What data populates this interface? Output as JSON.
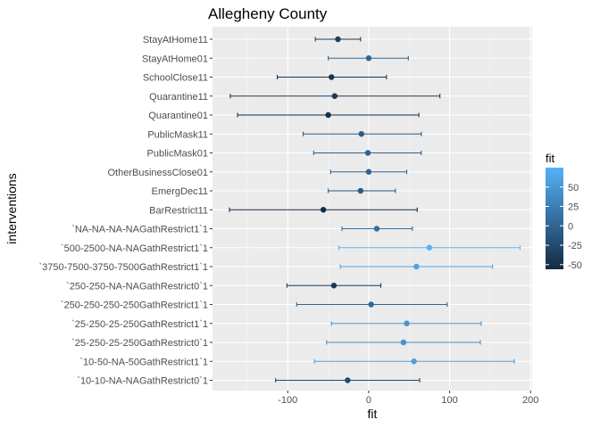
{
  "chart_data": {
    "type": "errorbar",
    "title": "Allegheny County",
    "xlabel": "fit",
    "ylabel": "interventions",
    "xlim": [
      -193,
      202
    ],
    "x_ticks": [
      -100,
      0,
      100,
      200
    ],
    "categories": [
      "StayAtHome11",
      "StayAtHome01",
      "SchoolClose11",
      "Quarantine11",
      "Quarantine01",
      "PublicMask11",
      "PublicMask01",
      "OtherBusinessClose01",
      "EmergDec11",
      "BarRestrict11",
      "`NA-NA-NA-NAGathRestrict1`1",
      "`500-2500-NA-NAGathRestrict1`1",
      "`3750-7500-3750-7500GathRestrict1`1",
      "`250-250-NA-NAGathRestrict0`1",
      "`250-250-250-250GathRestrict1`1",
      "`25-250-25-250GathRestrict1`1",
      "`25-250-25-250GathRestrict0`1",
      "`10-50-NA-50GathRestrict1`1",
      "`10-10-NA-NAGathRestrict0`1"
    ],
    "points": [
      {
        "fit": -38,
        "lower": -66,
        "upper": -10
      },
      {
        "fit": 0,
        "lower": -50,
        "upper": 49
      },
      {
        "fit": -46,
        "lower": -113,
        "upper": 22
      },
      {
        "fit": -42,
        "lower": -171,
        "upper": 88
      },
      {
        "fit": -50,
        "lower": -162,
        "upper": 62
      },
      {
        "fit": -9,
        "lower": -81,
        "upper": 65
      },
      {
        "fit": -1,
        "lower": -68,
        "upper": 65
      },
      {
        "fit": 0,
        "lower": -47,
        "upper": 47
      },
      {
        "fit": -10,
        "lower": -50,
        "upper": 33
      },
      {
        "fit": -56,
        "lower": -172,
        "upper": 60
      },
      {
        "fit": 10,
        "lower": -33,
        "upper": 54
      },
      {
        "fit": 75,
        "lower": -37,
        "upper": 187
      },
      {
        "fit": 59,
        "lower": -35,
        "upper": 153
      },
      {
        "fit": -43,
        "lower": -101,
        "upper": 15
      },
      {
        "fit": 3,
        "lower": -89,
        "upper": 97
      },
      {
        "fit": 47,
        "lower": -46,
        "upper": 139
      },
      {
        "fit": 43,
        "lower": -52,
        "upper": 138
      },
      {
        "fit": 56,
        "lower": -67,
        "upper": 180
      },
      {
        "fit": -26,
        "lower": -115,
        "upper": 63
      }
    ],
    "color_scale": {
      "title": "fit",
      "low_color": "#132B43",
      "high_color": "#56B1F7",
      "domain": [
        -56,
        75
      ],
      "ticks": [
        -50,
        -25,
        0,
        25,
        50
      ]
    },
    "panel_background": "#EBEBEB",
    "grid": true,
    "legend_position": "right"
  }
}
